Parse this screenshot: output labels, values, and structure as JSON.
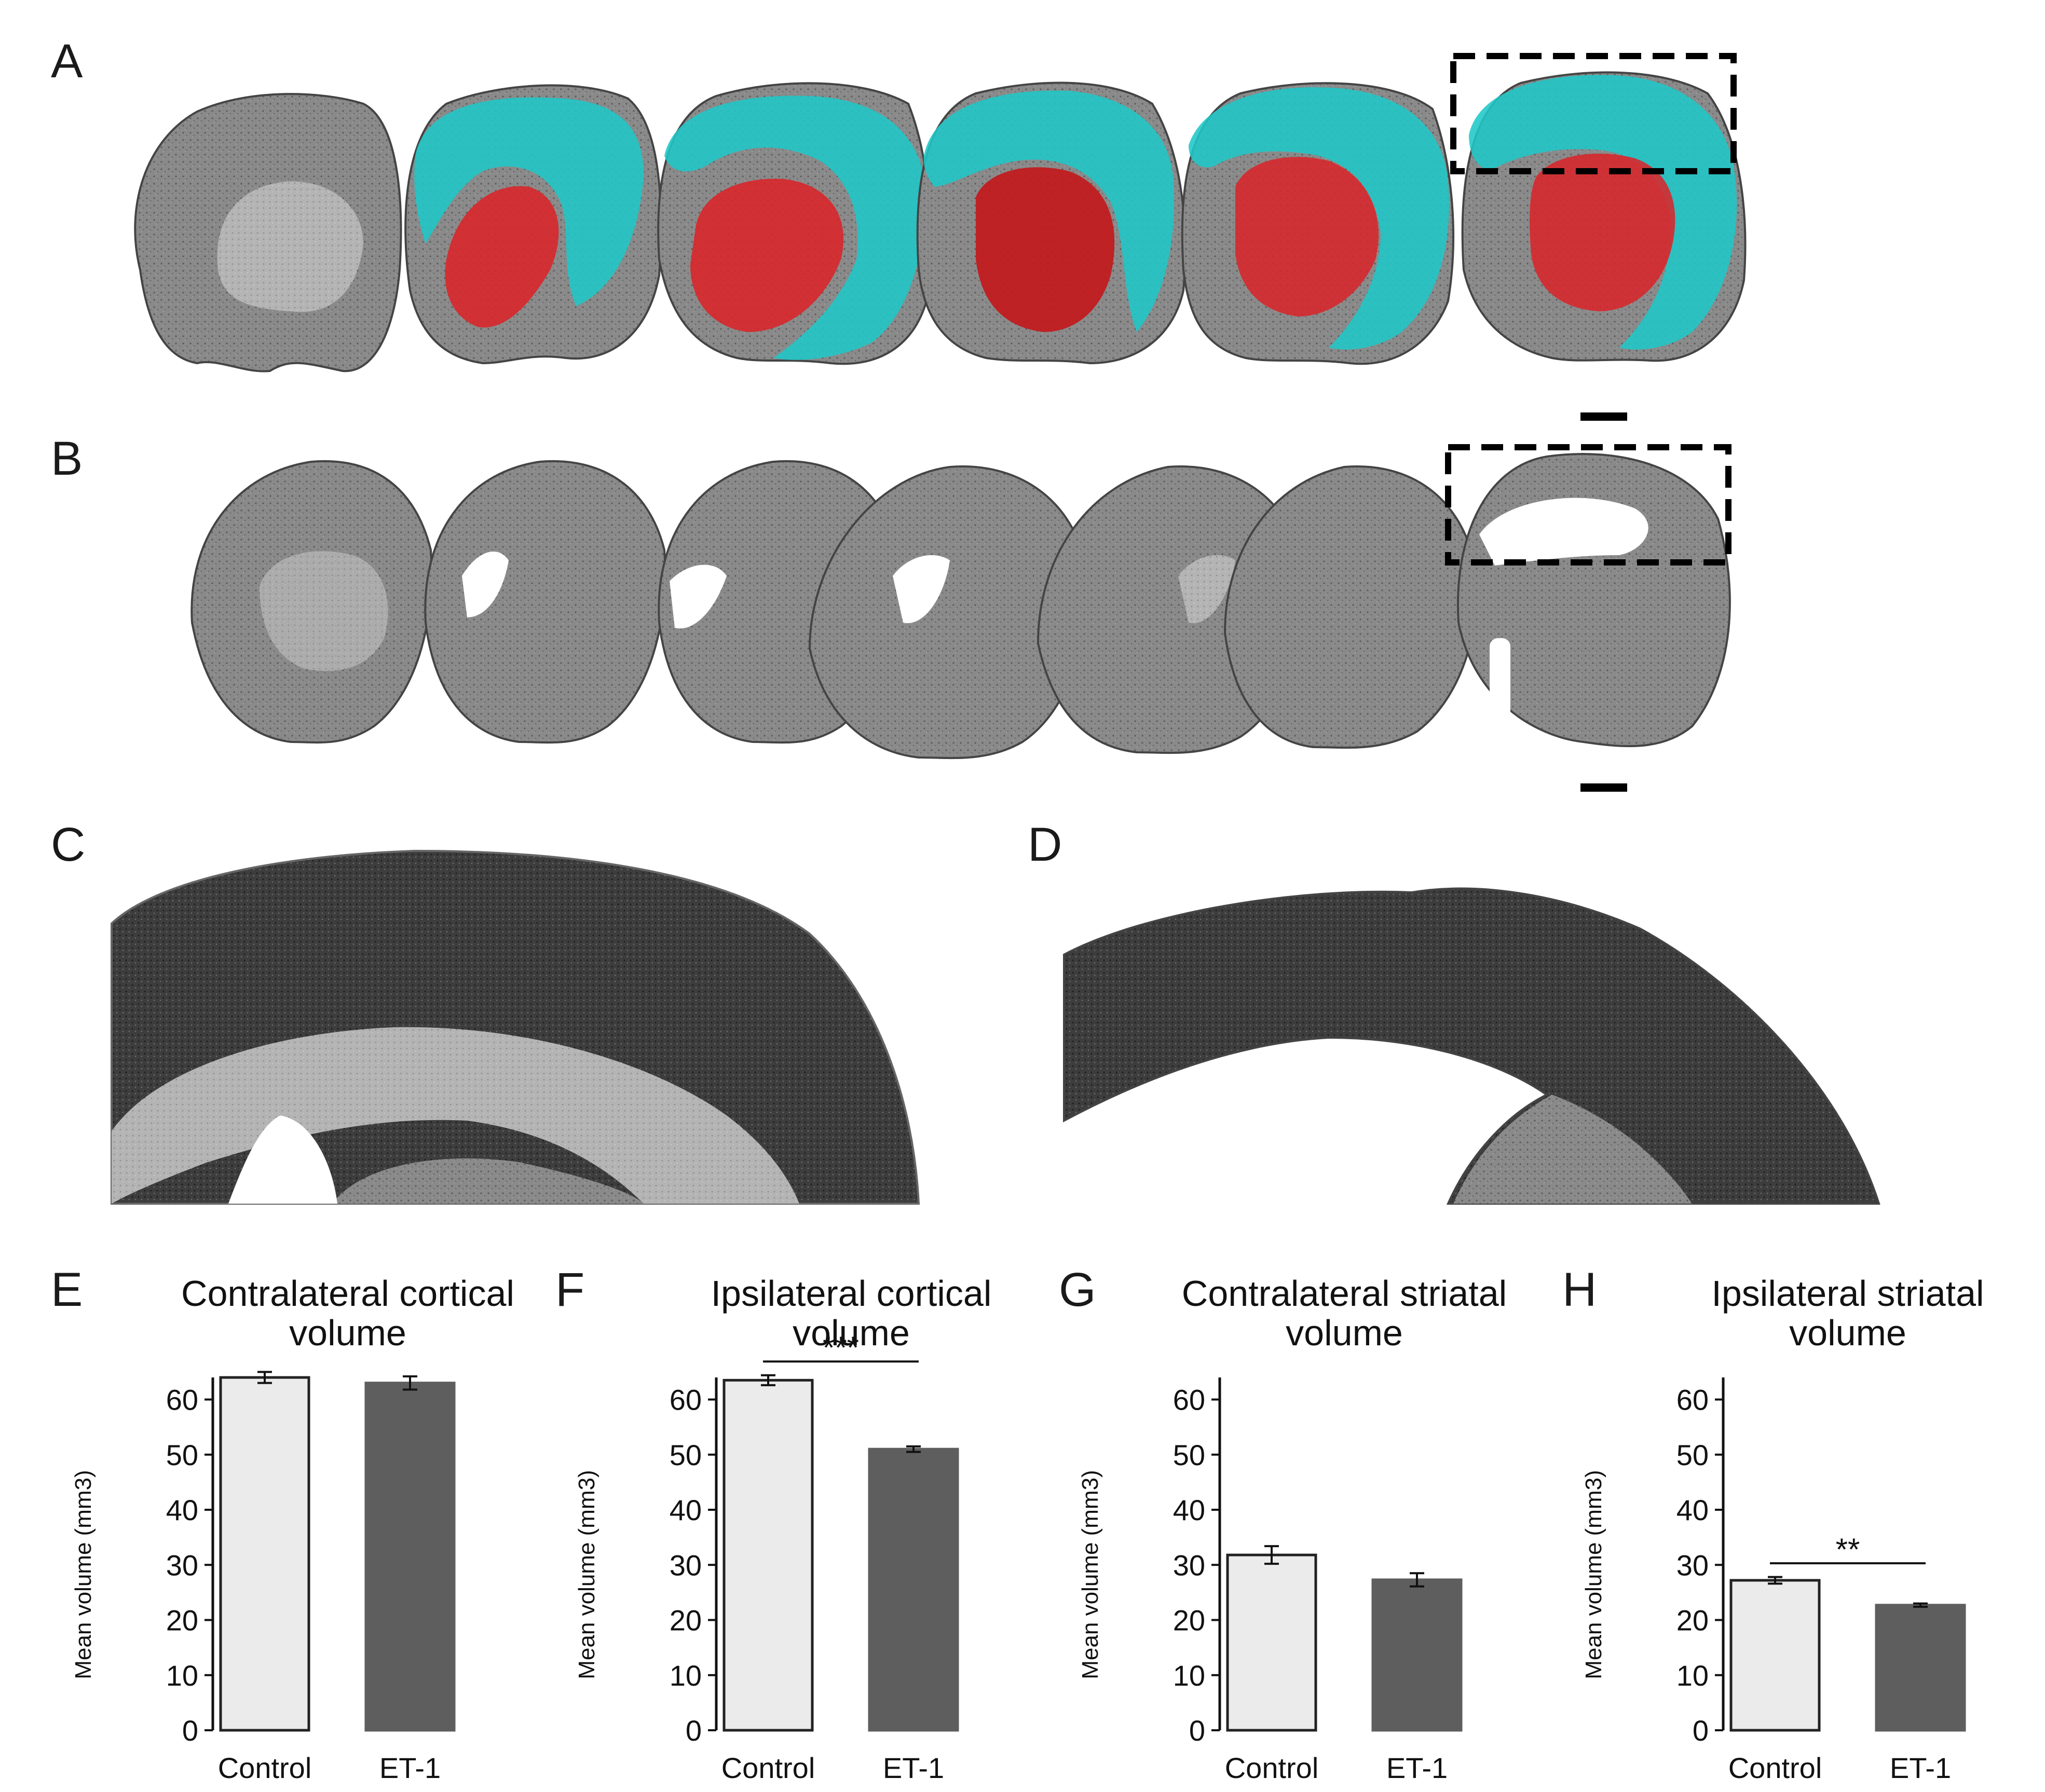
{
  "panels": {
    "A": "A",
    "B": "B",
    "C": "C",
    "D": "D",
    "E": "E",
    "F": "F",
    "G": "G",
    "H": "H"
  },
  "colors": {
    "cortex_overlay": "#1fc7c8",
    "striatum_overlay": "#d8262a",
    "control_bar": "#ebebeb",
    "et1_bar": "#5e5e5e",
    "background": "#ffffff"
  },
  "charts": [
    {
      "panel": "E",
      "title_line1": "Contralateral cortical",
      "title_line2": "volume",
      "ylabel": "Mean volume (mm3)",
      "significance": ""
    },
    {
      "panel": "F",
      "title_line1": "Ipsilateral cortical",
      "title_line2": "volume",
      "ylabel": "Mean volume (mm3)",
      "significance": "***"
    },
    {
      "panel": "G",
      "title_line1": "Contralateral striatal",
      "title_line2": "volume",
      "ylabel": "Mean volume (mm3)",
      "significance": ""
    },
    {
      "panel": "H",
      "title_line1": "Ipsilateral striatal",
      "title_line2": "volume",
      "ylabel": "Mean volume (mm3)",
      "significance": "**"
    }
  ],
  "chart_data": [
    {
      "type": "bar",
      "categories": [
        "Control",
        "ET-1"
      ],
      "values": [
        64.0,
        63.0
      ],
      "errors": [
        1.0,
        1.2
      ],
      "ylabel": "Mean volume (mm3)",
      "yticks": [
        0,
        10,
        20,
        30,
        40,
        50,
        60
      ],
      "ylim": [
        0,
        64
      ],
      "colors": [
        "#ebebeb",
        "#5e5e5e"
      ],
      "grid": false
    },
    {
      "type": "bar",
      "categories": [
        "Control",
        "ET-1"
      ],
      "values": [
        63.5,
        51.0
      ],
      "errors": [
        0.9,
        0.5
      ],
      "ylabel": "Mean volume (mm3)",
      "yticks": [
        0,
        10,
        20,
        30,
        40,
        50,
        60
      ],
      "ylim": [
        0,
        64
      ],
      "colors": [
        "#ebebeb",
        "#5e5e5e"
      ],
      "grid": false,
      "significance": "***"
    },
    {
      "type": "bar",
      "categories": [
        "Control",
        "ET-1"
      ],
      "values": [
        31.8,
        27.3
      ],
      "errors": [
        1.6,
        1.2
      ],
      "ylabel": "Mean volume (mm3)",
      "yticks": [
        0,
        10,
        20,
        30,
        40,
        50,
        60
      ],
      "ylim": [
        0,
        64
      ],
      "colors": [
        "#ebebeb",
        "#5e5e5e"
      ],
      "grid": false
    },
    {
      "type": "bar",
      "categories": [
        "Control",
        "ET-1"
      ],
      "values": [
        27.2,
        22.7
      ],
      "errors": [
        0.6,
        0.3
      ],
      "ylabel": "Mean volume (mm3)",
      "yticks": [
        0,
        10,
        20,
        30,
        40,
        50,
        60
      ],
      "ylim": [
        0,
        64
      ],
      "colors": [
        "#ebebeb",
        "#5e5e5e"
      ],
      "grid": false,
      "significance": "**"
    }
  ]
}
